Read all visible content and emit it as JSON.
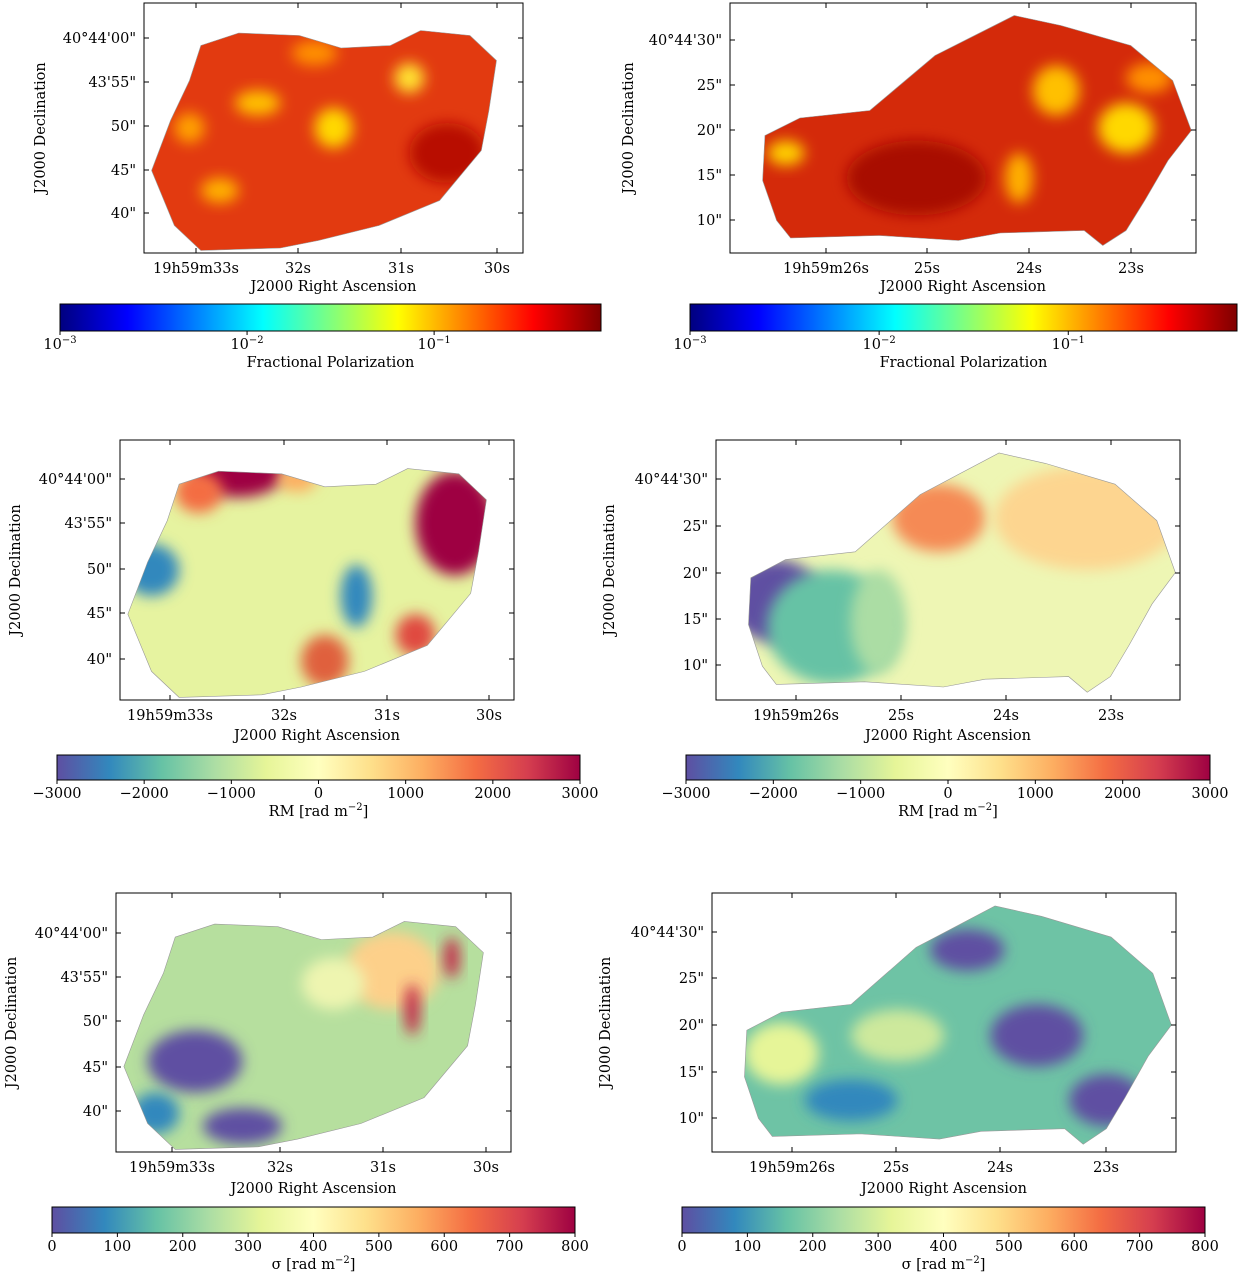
{
  "panels": [
    {
      "x_ticks": [
        "19h59m33s",
        "32s",
        "31s",
        "30s"
      ],
      "y_ticks": [
        "40°44'00\"",
        "43'55\"",
        "50\"",
        "45\"",
        "40\""
      ],
      "x_label": "J2000 Right Ascension",
      "y_label": "J2000 Declination",
      "colorbar": {
        "label": {
          "text": "Fractional Polarization"
        },
        "scale": "log",
        "lim": [
          0.001,
          0.78
        ],
        "ticks": [
          {
            "value": 0.001,
            "label": "10",
            "exponent": "−3"
          },
          {
            "value": 0.01,
            "label": "10",
            "exponent": "−2"
          },
          {
            "value": 0.1,
            "label": "10",
            "exponent": "−1"
          }
        ],
        "colormap": [
          "#00007f",
          "#0000ff",
          "#007fff",
          "#00ffff",
          "#7fff7f",
          "#ffff00",
          "#ff7f00",
          "#ff0000",
          "#7f0000"
        ]
      }
    },
    {
      "x_ticks": [
        "19h59m26s",
        "25s",
        "24s",
        "23s"
      ],
      "y_ticks": [
        "40°44'30\"",
        "25\"",
        "20\"",
        "15\"",
        "10\""
      ],
      "x_label": "J2000 Right Ascension",
      "y_label": "J2000 Declination",
      "colorbar": {
        "label": {
          "text": "Fractional Polarization"
        },
        "scale": "log",
        "lim": [
          0.001,
          0.78
        ],
        "ticks": [
          {
            "value": 0.001,
            "label": "10",
            "exponent": "−3"
          },
          {
            "value": 0.01,
            "label": "10",
            "exponent": "−2"
          },
          {
            "value": 0.1,
            "label": "10",
            "exponent": "−1"
          }
        ],
        "colormap": [
          "#00007f",
          "#0000ff",
          "#007fff",
          "#00ffff",
          "#7fff7f",
          "#ffff00",
          "#ff7f00",
          "#ff0000",
          "#7f0000"
        ]
      }
    },
    {
      "x_ticks": [
        "19h59m33s",
        "32s",
        "31s",
        "30s"
      ],
      "y_ticks": [
        "40°44'00\"",
        "43'55\"",
        "50\"",
        "45\"",
        "40\""
      ],
      "x_label": "J2000 Right Ascension",
      "y_label": "J2000 Declination",
      "colorbar": {
        "label": {
          "text": "RM [rad m",
          "exponent": "−2",
          "suffix": "]"
        },
        "scale": "linear",
        "lim": [
          -3000,
          3000
        ],
        "ticks": [
          {
            "value": -3000,
            "label": "−3000"
          },
          {
            "value": -2000,
            "label": "−2000"
          },
          {
            "value": -1000,
            "label": "−1000"
          },
          0,
          1000,
          2000,
          3000
        ],
        "colormap": [
          "#5e4fa2",
          "#3288bd",
          "#66c2a5",
          "#abdda4",
          "#e6f598",
          "#ffffbf",
          "#fee08b",
          "#fdae61",
          "#f46d43",
          "#d53e4f",
          "#9e0142"
        ]
      }
    },
    {
      "x_ticks": [
        "19h59m26s",
        "25s",
        "24s",
        "23s"
      ],
      "y_ticks": [
        "40°44'30\"",
        "25\"",
        "20\"",
        "15\"",
        "10\""
      ],
      "x_label": "J2000 Right Ascension",
      "y_label": "J2000 Declination",
      "colorbar": {
        "label": {
          "text": "RM [rad m",
          "exponent": "−2",
          "suffix": "]"
        },
        "scale": "linear",
        "lim": [
          -3000,
          3000
        ],
        "ticks": [
          {
            "value": -3000,
            "label": "−3000"
          },
          {
            "value": -2000,
            "label": "−2000"
          },
          {
            "value": -1000,
            "label": "−1000"
          },
          0,
          1000,
          2000,
          3000
        ],
        "colormap": [
          "#5e4fa2",
          "#3288bd",
          "#66c2a5",
          "#abdda4",
          "#e6f598",
          "#ffffbf",
          "#fee08b",
          "#fdae61",
          "#f46d43",
          "#d53e4f",
          "#9e0142"
        ]
      }
    },
    {
      "x_ticks": [
        "19h59m33s",
        "32s",
        "31s",
        "30s"
      ],
      "y_ticks": [
        "40°44'00\"",
        "43'55\"",
        "50\"",
        "45\"",
        "40\""
      ],
      "x_label": "J2000 Right Ascension",
      "y_label": "J2000 Declination",
      "colorbar": {
        "label": {
          "text": "σ [rad m",
          "exponent": "−2",
          "suffix": "]"
        },
        "scale": "linear",
        "lim": [
          0,
          800
        ],
        "ticks": [
          0,
          100,
          200,
          300,
          400,
          500,
          600,
          700,
          800
        ],
        "colormap": [
          "#5e4fa2",
          "#3288bd",
          "#66c2a5",
          "#abdda4",
          "#e6f598",
          "#ffffbf",
          "#fee08b",
          "#fdae61",
          "#f46d43",
          "#d53e4f",
          "#9e0142"
        ]
      }
    },
    {
      "x_ticks": [
        "19h59m26s",
        "25s",
        "24s",
        "23s"
      ],
      "y_ticks": [
        "40°44'30\"",
        "25\"",
        "20\"",
        "15\"",
        "10\""
      ],
      "x_label": "J2000 Right Ascension",
      "y_label": "J2000 Declination",
      "colorbar": {
        "label": {
          "text": "σ [rad m",
          "exponent": "−2",
          "suffix": "]"
        },
        "scale": "linear",
        "lim": [
          0,
          800
        ],
        "ticks": [
          0,
          100,
          200,
          300,
          400,
          500,
          600,
          700,
          800
        ],
        "colormap": [
          "#5e4fa2",
          "#3288bd",
          "#66c2a5",
          "#abdda4",
          "#e6f598",
          "#ffffbf",
          "#fee08b",
          "#fdae61",
          "#f46d43",
          "#d53e4f",
          "#9e0142"
        ]
      }
    }
  ]
}
